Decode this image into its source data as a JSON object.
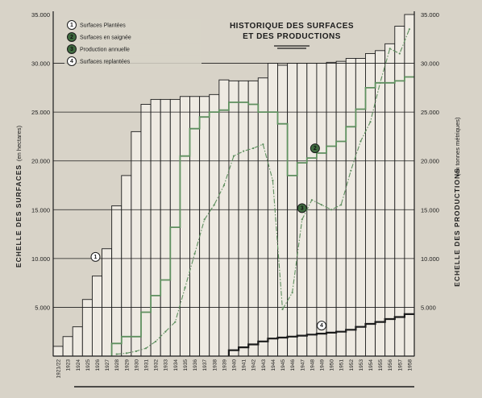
{
  "chart_data": {
    "type": "bar",
    "title_line1": "HISTORIQUE DES SURFACES",
    "title_line2": "ET DES PRODUCTIONS",
    "ylabel_left": "ECHELLE DES SURFACES",
    "ylabel_left_unit": "(en hectares)",
    "ylabel_right": "ECHELLE DES PRODUCTIONS",
    "ylabel_right_unit": "(en tonnes métriques)",
    "ylim": [
      0,
      35000
    ],
    "left_ticks": [
      "5.000",
      "10.000",
      "15.000",
      "20.000",
      "25.000",
      "30.000",
      "35.000"
    ],
    "right_ticks": [
      "5.000",
      "10.000",
      "15.000",
      "20.000",
      "25.000",
      "30.000",
      "35.000"
    ],
    "categories": [
      "1921/22",
      "1923",
      "1924",
      "1925",
      "1926",
      "1927",
      "1928",
      "1929",
      "1930",
      "1931",
      "1932",
      "1933",
      "1934",
      "1935",
      "1936",
      "1937",
      "1938",
      "1939",
      "1940",
      "1941",
      "1942",
      "1943",
      "1944",
      "1945",
      "1946",
      "1947",
      "1948",
      "1949",
      "1950",
      "1951",
      "1952",
      "1953",
      "1954",
      "1955",
      "1956",
      "1957",
      "1958"
    ],
    "legend": [
      {
        "num": "1",
        "label": "Surfaces Plantées",
        "fill": "#ffffff"
      },
      {
        "num": "2",
        "label": "Surfaces en saignée",
        "fill": "#3f6b3f"
      },
      {
        "num": "3",
        "label": "Production annuelle",
        "fill": "#3f6b3f"
      },
      {
        "num": "4",
        "label": "Surfaces replantées",
        "fill": "#ffffff"
      }
    ],
    "callouts": [
      {
        "num": "1",
        "year": "1926"
      },
      {
        "num": "2",
        "year": "1948"
      },
      {
        "num": "3",
        "year": "1947"
      },
      {
        "num": "4",
        "year": "1949"
      }
    ],
    "series": [
      {
        "name": "Surfaces Plantées",
        "values": [
          1000,
          2000,
          3000,
          5800,
          8200,
          11000,
          15400,
          18500,
          23000,
          25800,
          26300,
          26300,
          26300,
          26600,
          26600,
          26600,
          26800,
          28300,
          28200,
          28200,
          28200,
          28500,
          30000,
          29800,
          30000,
          30000,
          30000,
          30000,
          30100,
          30200,
          30500,
          30500,
          31000,
          31300,
          32000,
          33800,
          35000
        ]
      },
      {
        "name": "Surfaces en saignée",
        "values": [
          0,
          0,
          0,
          0,
          0,
          0,
          1300,
          2000,
          2000,
          4500,
          6200,
          7800,
          13200,
          20500,
          23300,
          24500,
          25000,
          25200,
          26000,
          26000,
          25800,
          25000,
          25000,
          23800,
          18500,
          19800,
          20300,
          20800,
          21500,
          22000,
          23500,
          25300,
          27500,
          28000,
          28000,
          28200,
          28600
        ]
      },
      {
        "name": "Production annuelle",
        "values": [
          null,
          null,
          null,
          null,
          null,
          null,
          200,
          300,
          500,
          800,
          1500,
          2500,
          3500,
          7000,
          10500,
          14000,
          15500,
          17500,
          20500,
          21000,
          21300,
          21700,
          18000,
          4800,
          6500,
          14000,
          16000,
          15500,
          15000,
          15500,
          19000,
          22000,
          24000,
          28000,
          31500,
          31000,
          33500
        ]
      },
      {
        "name": "Surfaces replantées",
        "values": [
          0,
          0,
          0,
          0,
          0,
          0,
          0,
          0,
          0,
          0,
          0,
          0,
          0,
          0,
          0,
          0,
          0,
          0,
          600,
          900,
          1200,
          1500,
          1800,
          1900,
          2000,
          2100,
          2200,
          2300,
          2400,
          2500,
          2700,
          3000,
          3300,
          3500,
          3800,
          4000,
          4300
        ]
      }
    ],
    "colors": {
      "paper": "#d8d3c8",
      "ink": "#1c1c1c",
      "bar_fill": "#eeeae2",
      "line_green": "#5f8f5f",
      "badge_green": "#3f6b3f"
    }
  }
}
